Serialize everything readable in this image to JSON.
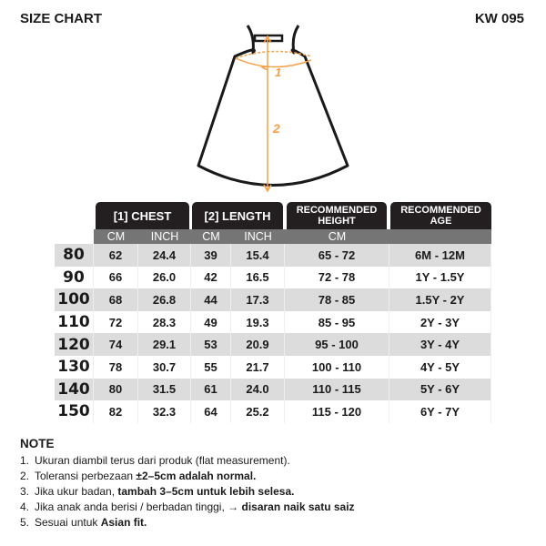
{
  "title": "SIZE CHART",
  "code": "KW 095",
  "diagram": {
    "label_1": "1",
    "label_2": "2",
    "accent": "#f5a04a"
  },
  "headers": {
    "chest": "[1] CHEST",
    "length": "[2] LENGTH",
    "height": "RECOMMENDED HEIGHT",
    "age": "RECOMMENDED AGE"
  },
  "subheaders": {
    "chest_cm": "CM",
    "chest_inch": "INCH",
    "length_cm": "CM",
    "length_inch": "INCH",
    "height_cm": "CM"
  },
  "rows": [
    {
      "size": "80",
      "chest_cm": "62",
      "chest_inch": "24.4",
      "length_cm": "39",
      "length_inch": "15.4",
      "height": "65 - 72",
      "age": "6M - 12M"
    },
    {
      "size": "90",
      "chest_cm": "66",
      "chest_inch": "26.0",
      "length_cm": "42",
      "length_inch": "16.5",
      "height": "72 - 78",
      "age": "1Y - 1.5Y"
    },
    {
      "size": "100",
      "chest_cm": "68",
      "chest_inch": "26.8",
      "length_cm": "44",
      "length_inch": "17.3",
      "height": "78 - 85",
      "age": "1.5Y - 2Y"
    },
    {
      "size": "110",
      "chest_cm": "72",
      "chest_inch": "28.3",
      "length_cm": "49",
      "length_inch": "19.3",
      "height": "85 - 95",
      "age": "2Y - 3Y"
    },
    {
      "size": "120",
      "chest_cm": "74",
      "chest_inch": "29.1",
      "length_cm": "53",
      "length_inch": "20.9",
      "height": "95 - 100",
      "age": "3Y - 4Y"
    },
    {
      "size": "130",
      "chest_cm": "78",
      "chest_inch": "30.7",
      "length_cm": "55",
      "length_inch": "21.7",
      "height": "100 - 110",
      "age": "4Y - 5Y"
    },
    {
      "size": "140",
      "chest_cm": "80",
      "chest_inch": "31.5",
      "length_cm": "61",
      "length_inch": "24.0",
      "height": "110 - 115",
      "age": "5Y - 6Y"
    },
    {
      "size": "150",
      "chest_cm": "82",
      "chest_inch": "32.3",
      "length_cm": "64",
      "length_inch": "25.2",
      "height": "115 - 120",
      "age": "6Y - 7Y"
    }
  ],
  "note": {
    "title": "NOTE",
    "items": [
      {
        "num": "1.",
        "text": "Ukuran diambil terus dari produk (flat measurement).",
        "bold": ""
      },
      {
        "num": "2.",
        "text": "Toleransi perbezaan ",
        "bold": "±2–5cm adalah normal."
      },
      {
        "num": "3.",
        "text": "Jika ukur badan, ",
        "bold": "tambah 3–5cm untuk lebih selesa."
      },
      {
        "num": "4.",
        "text": "Jika anak anda berisi / berbadan tinggi, → ",
        "bold": "disaran naik satu saiz"
      },
      {
        "num": "5.",
        "text": "Sesuai untuk ",
        "bold": "Asian fit."
      }
    ]
  }
}
